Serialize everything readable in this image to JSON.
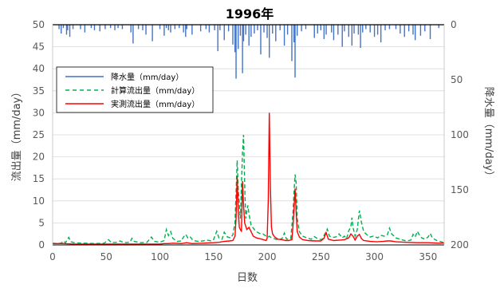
{
  "chart_data": {
    "type": "line",
    "title": "1996年",
    "xlabel": "日数",
    "ylabel_left": "流出量（mm/day）",
    "ylabel_right": "降水量（mm/day）",
    "xlim": [
      0,
      365
    ],
    "ylim_left": [
      0,
      50
    ],
    "ylim_right": [
      0,
      200
    ],
    "y_right_inverted": true,
    "x_ticks": [
      "0",
      "50",
      "100",
      "150",
      "200",
      "250",
      "300",
      "350"
    ],
    "y_left_ticks": [
      "0",
      "5",
      "10",
      "15",
      "20",
      "25",
      "30",
      "35",
      "40",
      "45",
      "50"
    ],
    "y_right_ticks": [
      "0",
      "50",
      "100",
      "150",
      "200"
    ],
    "legend_position": "upper-left",
    "colors": {
      "rain": "#4472C4",
      "calc": "#00B050",
      "obs": "#FF0000"
    },
    "series": [
      {
        "name": "降水量（mm/day）",
        "axis": "right",
        "style": "bar",
        "points": [
          [
            6,
            4
          ],
          [
            8,
            8
          ],
          [
            10,
            3
          ],
          [
            13,
            9
          ],
          [
            14,
            5
          ],
          [
            16,
            11
          ],
          [
            19,
            4
          ],
          [
            26,
            4
          ],
          [
            30,
            7
          ],
          [
            36,
            3
          ],
          [
            39,
            5
          ],
          [
            44,
            6
          ],
          [
            49,
            4
          ],
          [
            54,
            3
          ],
          [
            58,
            5
          ],
          [
            61,
            3
          ],
          [
            65,
            4
          ],
          [
            73,
            7
          ],
          [
            75,
            17
          ],
          [
            80,
            4
          ],
          [
            84,
            5
          ],
          [
            87,
            9
          ],
          [
            93,
            15
          ],
          [
            100,
            4
          ],
          [
            104,
            10
          ],
          [
            106,
            3
          ],
          [
            108,
            5
          ],
          [
            110,
            7
          ],
          [
            114,
            4
          ],
          [
            118,
            3
          ],
          [
            122,
            7
          ],
          [
            124,
            11
          ],
          [
            125,
            4
          ],
          [
            130,
            9
          ],
          [
            138,
            6
          ],
          [
            143,
            4
          ],
          [
            146,
            7
          ],
          [
            151,
            5
          ],
          [
            154,
            24
          ],
          [
            156,
            5
          ],
          [
            160,
            14
          ],
          [
            164,
            6
          ],
          [
            168,
            18
          ],
          [
            170,
            25
          ],
          [
            171,
            49
          ],
          [
            173,
            22
          ],
          [
            175,
            10
          ],
          [
            177,
            44
          ],
          [
            178,
            15
          ],
          [
            180,
            9
          ],
          [
            183,
            19
          ],
          [
            185,
            11
          ],
          [
            188,
            8
          ],
          [
            191,
            5
          ],
          [
            194,
            27
          ],
          [
            197,
            7
          ],
          [
            200,
            12
          ],
          [
            202,
            30
          ],
          [
            205,
            8
          ],
          [
            208,
            15
          ],
          [
            212,
            5
          ],
          [
            216,
            19
          ],
          [
            219,
            9
          ],
          [
            223,
            33
          ],
          [
            225,
            16
          ],
          [
            226,
            48
          ],
          [
            228,
            10
          ],
          [
            232,
            6
          ],
          [
            236,
            4
          ],
          [
            244,
            12
          ],
          [
            247,
            8
          ],
          [
            250,
            5
          ],
          [
            253,
            13
          ],
          [
            255,
            9
          ],
          [
            260,
            7
          ],
          [
            262,
            14
          ],
          [
            266,
            9
          ],
          [
            270,
            20
          ],
          [
            272,
            6
          ],
          [
            276,
            11
          ],
          [
            279,
            19
          ],
          [
            281,
            8
          ],
          [
            285,
            9
          ],
          [
            287,
            21
          ],
          [
            289,
            7
          ],
          [
            292,
            4
          ],
          [
            296,
            7
          ],
          [
            300,
            11
          ],
          [
            303,
            9
          ],
          [
            306,
            16
          ],
          [
            310,
            5
          ],
          [
            314,
            4
          ],
          [
            320,
            4
          ],
          [
            324,
            8
          ],
          [
            328,
            11
          ],
          [
            332,
            6
          ],
          [
            336,
            9
          ],
          [
            338,
            14
          ],
          [
            343,
            10
          ],
          [
            347,
            6
          ],
          [
            352,
            13
          ],
          [
            360,
            3
          ]
        ]
      },
      {
        "name": "計算流出量（mm/day）",
        "axis": "left",
        "style": "dashed",
        "points": [
          [
            0,
            0.4
          ],
          [
            4,
            0.3
          ],
          [
            8,
            0.4
          ],
          [
            10,
            0.9
          ],
          [
            12,
            0.5
          ],
          [
            15,
            1.7
          ],
          [
            17,
            0.7
          ],
          [
            20,
            0.5
          ],
          [
            28,
            0.4
          ],
          [
            40,
            0.3
          ],
          [
            48,
            0.4
          ],
          [
            52,
            1.2
          ],
          [
            55,
            0.5
          ],
          [
            60,
            0.6
          ],
          [
            63,
            0.9
          ],
          [
            66,
            0.5
          ],
          [
            72,
            0.6
          ],
          [
            74,
            1.5
          ],
          [
            76,
            0.8
          ],
          [
            82,
            0.5
          ],
          [
            88,
            0.6
          ],
          [
            92,
            1.8
          ],
          [
            95,
            0.8
          ],
          [
            100,
            0.6
          ],
          [
            104,
            1.0
          ],
          [
            106,
            3.5
          ],
          [
            108,
            2.1
          ],
          [
            110,
            3.0
          ],
          [
            112,
            1.5
          ],
          [
            116,
            0.8
          ],
          [
            120,
            0.9
          ],
          [
            122,
            1.8
          ],
          [
            124,
            2.4
          ],
          [
            126,
            1.6
          ],
          [
            128,
            1.9
          ],
          [
            131,
            1.0
          ],
          [
            136,
            0.8
          ],
          [
            140,
            0.9
          ],
          [
            144,
            1.1
          ],
          [
            148,
            0.9
          ],
          [
            150,
            1.2
          ],
          [
            153,
            3.1
          ],
          [
            155,
            1.6
          ],
          [
            158,
            1.3
          ],
          [
            160,
            2.9
          ],
          [
            163,
            1.8
          ],
          [
            166,
            1.6
          ],
          [
            168,
            2.3
          ],
          [
            170,
            5.0
          ],
          [
            172,
            19.2
          ],
          [
            173,
            13.0
          ],
          [
            175,
            6.0
          ],
          [
            177,
            21.0
          ],
          [
            178,
            25.0
          ],
          [
            179,
            14.0
          ],
          [
            180,
            6.0
          ],
          [
            182,
            9.0
          ],
          [
            183,
            7.0
          ],
          [
            185,
            4.5
          ],
          [
            188,
            3.5
          ],
          [
            190,
            3.0
          ],
          [
            193,
            2.6
          ],
          [
            196,
            2.5
          ],
          [
            199,
            2.0
          ],
          [
            201,
            1.8
          ],
          [
            202,
            2.0
          ],
          [
            204,
            1.6
          ],
          [
            208,
            1.3
          ],
          [
            211,
            1.1
          ],
          [
            214,
            1.5
          ],
          [
            216,
            2.7
          ],
          [
            218,
            1.3
          ],
          [
            222,
            1.4
          ],
          [
            224,
            7.0
          ],
          [
            225,
            12.0
          ],
          [
            226,
            16.0
          ],
          [
            227,
            14.0
          ],
          [
            228,
            6.0
          ],
          [
            230,
            3.0
          ],
          [
            233,
            2.0
          ],
          [
            237,
            1.6
          ],
          [
            241,
            1.3
          ],
          [
            244,
            1.9
          ],
          [
            247,
            1.4
          ],
          [
            251,
            1.2
          ],
          [
            254,
            2.6
          ],
          [
            256,
            3.6
          ],
          [
            258,
            2.0
          ],
          [
            261,
            1.7
          ],
          [
            264,
            1.8
          ],
          [
            267,
            2.5
          ],
          [
            270,
            1.6
          ],
          [
            272,
            2.0
          ],
          [
            274,
            1.4
          ],
          [
            276,
            3.2
          ],
          [
            278,
            4.2
          ],
          [
            279,
            6.2
          ],
          [
            280,
            4.0
          ],
          [
            282,
            2.0
          ],
          [
            284,
            3.5
          ],
          [
            286,
            7.8
          ],
          [
            288,
            5.0
          ],
          [
            290,
            3.0
          ],
          [
            293,
            2.3
          ],
          [
            296,
            1.8
          ],
          [
            299,
            2.0
          ],
          [
            303,
            1.6
          ],
          [
            306,
            2.2
          ],
          [
            309,
            2.0
          ],
          [
            312,
            2.3
          ],
          [
            314,
            3.8
          ],
          [
            316,
            2.5
          ],
          [
            320,
            1.6
          ],
          [
            325,
            1.2
          ],
          [
            330,
            0.9
          ],
          [
            334,
            1.1
          ],
          [
            336,
            2.4
          ],
          [
            338,
            1.8
          ],
          [
            340,
            3.1
          ],
          [
            342,
            2.2
          ],
          [
            344,
            1.6
          ],
          [
            347,
            1.3
          ],
          [
            350,
            1.8
          ],
          [
            352,
            2.6
          ],
          [
            354,
            1.6
          ],
          [
            358,
            1.0
          ],
          [
            362,
            0.7
          ],
          [
            365,
            0.5
          ]
        ]
      },
      {
        "name": "実測流出量（mm/day）",
        "axis": "left",
        "style": "solid",
        "points": [
          [
            0,
            0.3
          ],
          [
            10,
            0.3
          ],
          [
            20,
            0.2
          ],
          [
            40,
            0.2
          ],
          [
            60,
            0.2
          ],
          [
            80,
            0.2
          ],
          [
            100,
            0.2
          ],
          [
            104,
            0.3
          ],
          [
            108,
            0.3
          ],
          [
            112,
            0.4
          ],
          [
            120,
            0.3
          ],
          [
            125,
            0.5
          ],
          [
            130,
            0.3
          ],
          [
            140,
            0.4
          ],
          [
            150,
            0.5
          ],
          [
            155,
            0.6
          ],
          [
            160,
            0.8
          ],
          [
            165,
            0.9
          ],
          [
            168,
            1.0
          ],
          [
            170,
            2.0
          ],
          [
            171,
            6.0
          ],
          [
            172,
            15.5
          ],
          [
            173,
            8.0
          ],
          [
            174,
            4.0
          ],
          [
            176,
            3.0
          ],
          [
            177,
            14.5
          ],
          [
            178,
            9.0
          ],
          [
            179,
            5.0
          ],
          [
            181,
            3.5
          ],
          [
            183,
            4.0
          ],
          [
            185,
            3.0
          ],
          [
            187,
            2.0
          ],
          [
            190,
            1.6
          ],
          [
            195,
            1.3
          ],
          [
            199,
            1.0
          ],
          [
            200,
            1.5
          ],
          [
            201,
            10.0
          ],
          [
            202,
            30.0
          ],
          [
            203,
            13.0
          ],
          [
            204,
            4.0
          ],
          [
            205,
            2.5
          ],
          [
            207,
            1.8
          ],
          [
            210,
            1.3
          ],
          [
            214,
            1.2
          ],
          [
            217,
            1.0
          ],
          [
            220,
            1.0
          ],
          [
            223,
            1.2
          ],
          [
            224,
            4.0
          ],
          [
            225,
            8.0
          ],
          [
            226,
            12.8
          ],
          [
            227,
            7.5
          ],
          [
            228,
            3.0
          ],
          [
            230,
            1.8
          ],
          [
            233,
            1.2
          ],
          [
            238,
            1.0
          ],
          [
            244,
            0.9
          ],
          [
            250,
            0.9
          ],
          [
            253,
            1.5
          ],
          [
            255,
            2.8
          ],
          [
            257,
            1.3
          ],
          [
            262,
            1.0
          ],
          [
            268,
            1.1
          ],
          [
            272,
            1.2
          ],
          [
            276,
            1.6
          ],
          [
            278,
            2.5
          ],
          [
            280,
            2.0
          ],
          [
            282,
            1.1
          ],
          [
            284,
            2.0
          ],
          [
            286,
            2.4
          ],
          [
            288,
            1.4
          ],
          [
            290,
            1.0
          ],
          [
            296,
            0.8
          ],
          [
            302,
            0.7
          ],
          [
            308,
            0.8
          ],
          [
            312,
            0.9
          ],
          [
            315,
            0.9
          ],
          [
            320,
            0.7
          ],
          [
            330,
            0.6
          ],
          [
            340,
            0.5
          ],
          [
            350,
            0.5
          ],
          [
            360,
            0.4
          ],
          [
            365,
            0.4
          ]
        ]
      }
    ]
  }
}
